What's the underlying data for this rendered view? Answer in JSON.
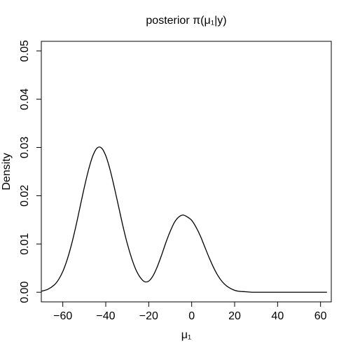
{
  "chart_data": {
    "type": "line",
    "title": "posterior π(μ₁|y)",
    "xlabel": "μ₁",
    "ylabel": "Density",
    "xlim": [
      -70,
      65
    ],
    "ylim": [
      -0.002,
      0.052
    ],
    "x_ticks": [
      -60,
      -40,
      -20,
      0,
      20,
      40,
      60
    ],
    "x_tick_labels": [
      "−60",
      "−40",
      "−20",
      "0",
      "20",
      "40",
      "60"
    ],
    "y_ticks": [
      0.0,
      0.01,
      0.02,
      0.03,
      0.04,
      0.05
    ],
    "y_tick_labels": [
      "0.00",
      "0.01",
      "0.02",
      "0.03",
      "0.04",
      "0.05"
    ],
    "grid": false,
    "series": [
      {
        "color": "#000000",
        "x": [
          -70,
          -67,
          -64,
          -62,
          -60,
          -58,
          -56,
          -54,
          -52,
          -50,
          -48,
          -46,
          -44,
          -42,
          -40,
          -38,
          -36,
          -34,
          -32,
          -30,
          -28,
          -26,
          -24,
          -22,
          -20,
          -18,
          -16,
          -14,
          -12,
          -10,
          -8,
          -6,
          -4,
          -2,
          0,
          2,
          4,
          6,
          8,
          10,
          12,
          14,
          16,
          18,
          20,
          22,
          25,
          28,
          32,
          36,
          40,
          45,
          50,
          55,
          60,
          63
        ],
        "y": [
          0.0002,
          0.0006,
          0.0015,
          0.0026,
          0.0043,
          0.0067,
          0.0098,
          0.0135,
          0.0176,
          0.0217,
          0.0254,
          0.0283,
          0.0299,
          0.0299,
          0.0283,
          0.0254,
          0.0217,
          0.0177,
          0.0137,
          0.0101,
          0.0071,
          0.0047,
          0.0031,
          0.0022,
          0.0023,
          0.0034,
          0.0053,
          0.0077,
          0.0103,
          0.0126,
          0.0145,
          0.0156,
          0.016,
          0.0156,
          0.0149,
          0.0135,
          0.0117,
          0.0095,
          0.0073,
          0.0053,
          0.0036,
          0.0023,
          0.0014,
          0.0008,
          0.0004,
          0.0002,
          0.0001,
          0.0,
          0.0,
          0.0,
          0.0,
          0.0,
          0.0,
          0.0,
          0.0,
          0.0
        ]
      }
    ]
  }
}
